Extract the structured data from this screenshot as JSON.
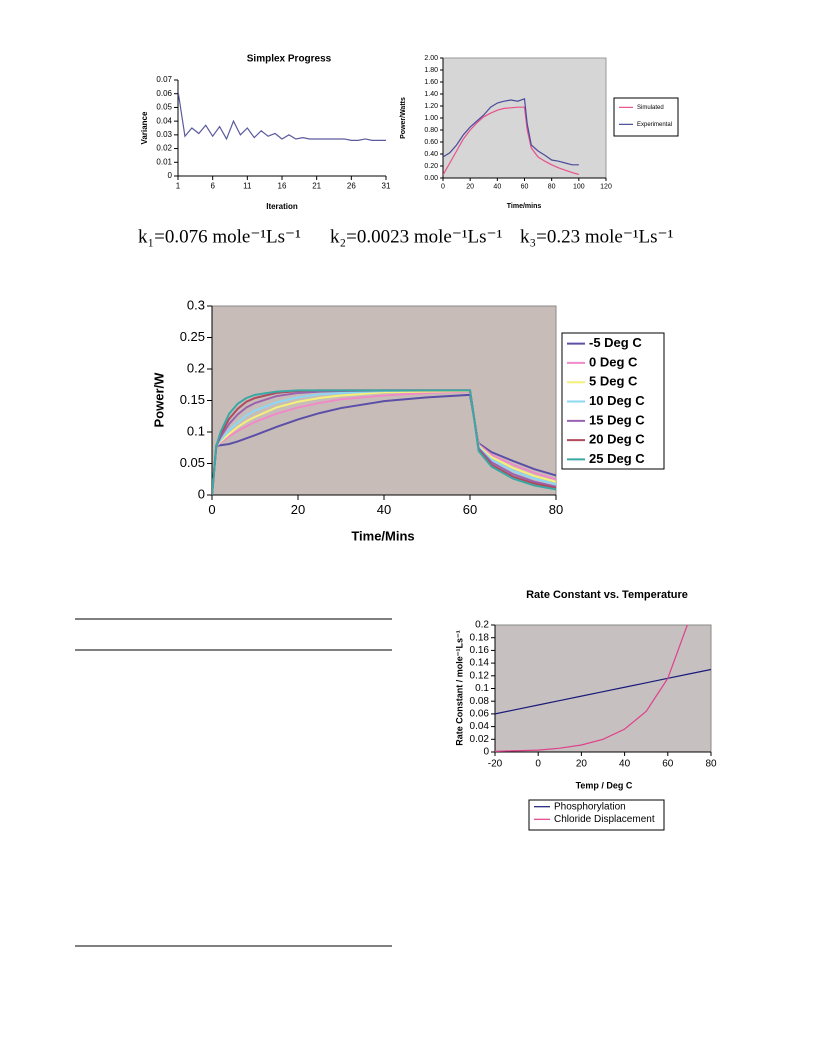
{
  "constants": [
    "k₁=0.076 mole⁻¹Ls⁻¹",
    "k₂=0.0023 mole⁻¹Ls⁻¹",
    "k₃=0.23 mole⁻¹Ls⁻¹"
  ],
  "chart_data": [
    {
      "type": "line",
      "title": "Simplex Progress",
      "x_label": "Iteration",
      "y_label": "Variance",
      "x": [
        1,
        2,
        3,
        4,
        5,
        6,
        7,
        8,
        9,
        10,
        11,
        12,
        13,
        14,
        15,
        16,
        17,
        18,
        19,
        20,
        21,
        22,
        23,
        24,
        25,
        26,
        27,
        28,
        29,
        30,
        31
      ],
      "series": [
        {
          "color": "#5a5a9e",
          "values": [
            0.062,
            0.029,
            0.035,
            0.031,
            0.037,
            0.029,
            0.036,
            0.027,
            0.04,
            0.03,
            0.035,
            0.028,
            0.033,
            0.029,
            0.031,
            0.027,
            0.03,
            0.027,
            0.028,
            0.027,
            0.027,
            0.027,
            0.027,
            0.027,
            0.027,
            0.026,
            0.026,
            0.027,
            0.026,
            0.026,
            0.026
          ]
        }
      ],
      "xlim": [
        1,
        31
      ],
      "xticks": [
        1,
        6,
        11,
        16,
        21,
        26,
        31
      ],
      "ylim": [
        0,
        0.07
      ],
      "yticks": [
        0,
        0.01,
        0.02,
        0.03,
        0.04,
        0.05,
        0.06,
        0.07
      ]
    },
    {
      "type": "line",
      "x_label": "Time/mins",
      "y_label": "Power/Watts",
      "x": [
        0,
        5,
        10,
        15,
        20,
        25,
        30,
        35,
        40,
        45,
        50,
        55,
        60,
        62,
        65,
        70,
        75,
        80,
        85,
        90,
        95,
        100
      ],
      "series": [
        {
          "name": "Simulated",
          "color": "#e8508a",
          "values": [
            0.05,
            0.25,
            0.45,
            0.65,
            0.8,
            0.92,
            1.02,
            1.08,
            1.13,
            1.16,
            1.17,
            1.18,
            1.18,
            0.8,
            0.5,
            0.35,
            0.28,
            0.22,
            0.17,
            0.13,
            0.09,
            0.06
          ]
        },
        {
          "name": "Experimental",
          "color": "#4a4a9a",
          "values": [
            0.35,
            0.42,
            0.55,
            0.72,
            0.85,
            0.95,
            1.05,
            1.18,
            1.25,
            1.28,
            1.3,
            1.28,
            1.32,
            0.9,
            0.55,
            0.45,
            0.38,
            0.3,
            0.28,
            0.25,
            0.22,
            0.22
          ]
        }
      ],
      "xlim": [
        0,
        120
      ],
      "xticks": [
        0,
        20,
        40,
        60,
        80,
        100,
        120
      ],
      "ylim": [
        0,
        2
      ],
      "yticks": [
        {
          "value": 0,
          "label": "0.00"
        },
        {
          "value": 0.2,
          "label": "0.20"
        },
        {
          "value": 0.4,
          "label": "0.40"
        },
        {
          "value": 0.6,
          "label": "0.60"
        },
        {
          "value": 0.8,
          "label": "0.80"
        },
        {
          "value": 1,
          "label": "1.00"
        },
        {
          "value": 1.2,
          "label": "1.20"
        },
        {
          "value": 1.4,
          "label": "1.40"
        },
        {
          "value": 1.6,
          "label": "1.60"
        },
        {
          "value": 1.8,
          "label": "1.80"
        },
        {
          "value": 2,
          "label": "2.00"
        }
      ],
      "legend": "right"
    },
    {
      "type": "line",
      "x_label": "Time/Mins",
      "y_label": "Power/W",
      "x": [
        0,
        1,
        2,
        4,
        6,
        8,
        10,
        15,
        20,
        25,
        30,
        40,
        50,
        60,
        61,
        62,
        65,
        70,
        75,
        80
      ],
      "series": [
        {
          "name": "-5 Deg C",
          "color": "#5b4fa8",
          "values": [
            0,
            0.078,
            0.079,
            0.081,
            0.085,
            0.09,
            0.095,
            0.108,
            0.12,
            0.13,
            0.138,
            0.149,
            0.155,
            0.159,
            0.12,
            0.082,
            0.068,
            0.054,
            0.041,
            0.031
          ]
        },
        {
          "name": "0 Deg C",
          "color": "#f08ac8",
          "values": [
            0,
            0.078,
            0.083,
            0.093,
            0.102,
            0.109,
            0.116,
            0.129,
            0.139,
            0.146,
            0.152,
            0.158,
            0.162,
            0.164,
            0.12,
            0.08,
            0.064,
            0.048,
            0.035,
            0.025
          ]
        },
        {
          "name": "5 Deg C",
          "color": "#f4f07a",
          "values": [
            0,
            0.078,
            0.085,
            0.097,
            0.108,
            0.117,
            0.124,
            0.139,
            0.148,
            0.154,
            0.158,
            0.163,
            0.164,
            0.165,
            0.12,
            0.078,
            0.06,
            0.043,
            0.03,
            0.021
          ]
        },
        {
          "name": "10 Deg C",
          "color": "#8cd8f4",
          "values": [
            0,
            0.078,
            0.087,
            0.103,
            0.115,
            0.126,
            0.134,
            0.147,
            0.155,
            0.16,
            0.162,
            0.165,
            0.166,
            0.166,
            0.12,
            0.076,
            0.056,
            0.038,
            0.026,
            0.017
          ]
        },
        {
          "name": "15 Deg C",
          "color": "#9a62b0",
          "values": [
            0,
            0.078,
            0.092,
            0.113,
            0.128,
            0.139,
            0.146,
            0.157,
            0.162,
            0.164,
            0.165,
            0.166,
            0.166,
            0.166,
            0.12,
            0.074,
            0.052,
            0.033,
            0.021,
            0.013
          ]
        },
        {
          "name": "20 Deg C",
          "color": "#b04a5e",
          "values": [
            0,
            0.078,
            0.096,
            0.121,
            0.137,
            0.148,
            0.154,
            0.162,
            0.165,
            0.166,
            0.166,
            0.166,
            0.166,
            0.166,
            0.12,
            0.072,
            0.048,
            0.029,
            0.018,
            0.011
          ]
        },
        {
          "name": "25 Deg C",
          "color": "#3aa8a4",
          "values": [
            0,
            0.078,
            0.1,
            0.129,
            0.145,
            0.154,
            0.159,
            0.164,
            0.166,
            0.166,
            0.166,
            0.166,
            0.166,
            0.166,
            0.12,
            0.07,
            0.045,
            0.026,
            0.015,
            0.009
          ]
        }
      ],
      "xlim": [
        0,
        80
      ],
      "xticks": [
        0,
        20,
        40,
        60,
        80
      ],
      "ylim": [
        0,
        0.3
      ],
      "yticks": [
        0,
        0.05,
        0.1,
        0.15,
        0.2,
        0.25,
        0.3
      ],
      "legend": "right"
    },
    {
      "type": "line",
      "title": "Rate Constant vs. Temperature",
      "x_label": "Temp / Deg C",
      "y_label": "Rate Constant / mole⁻¹Ls⁻¹",
      "x": [
        -20,
        -10,
        0,
        10,
        20,
        30,
        40,
        50,
        60,
        70,
        80
      ],
      "series": [
        {
          "name": "Phosphorylation",
          "color": "#1a1a7a",
          "values": [
            0.06,
            0.067,
            0.074,
            0.081,
            0.088,
            0.095,
            0.102,
            0.109,
            0.116,
            0.123,
            0.13
          ]
        },
        {
          "name": "Chloride Displacement",
          "color": "#e0408a",
          "values": [
            0.001,
            0.002,
            0.003,
            0.006,
            0.011,
            0.02,
            0.036,
            0.064,
            0.116,
            0.209,
            null
          ]
        }
      ],
      "xlim": [
        -20,
        80
      ],
      "xticks": [
        -20,
        0,
        20,
        40,
        60,
        80
      ],
      "ylim": [
        0,
        0.2
      ],
      "yticks": [
        0,
        0.02,
        0.04,
        0.06,
        0.08,
        0.1,
        0.12,
        0.14,
        0.16,
        0.18,
        0.2
      ],
      "legend": "bottom"
    }
  ]
}
